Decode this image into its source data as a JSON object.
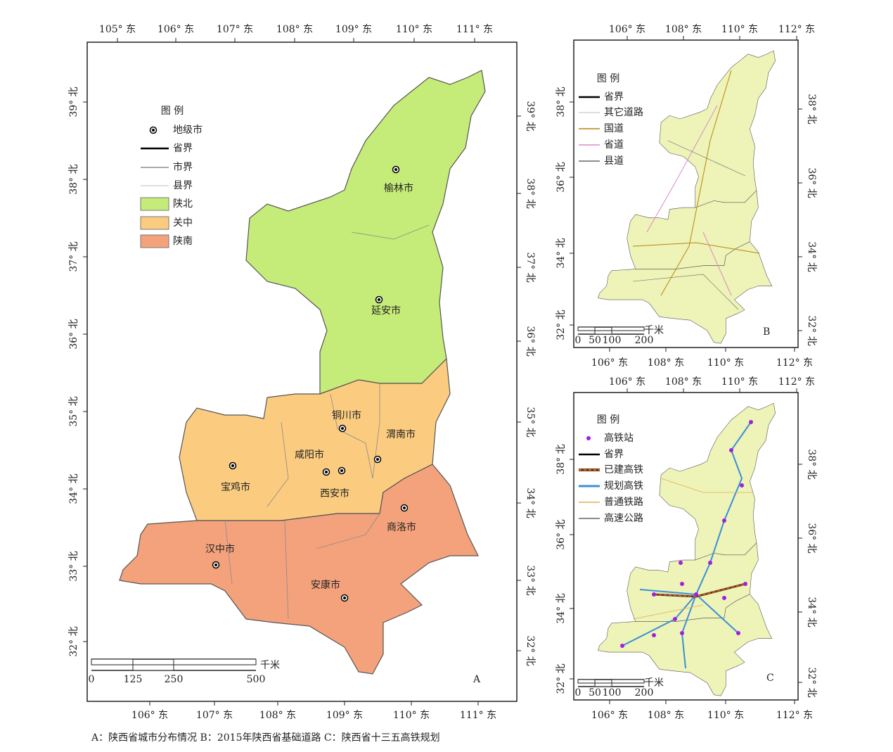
{
  "panels": [
    {
      "label": "A",
      "ticks": {
        "top": [
          "105° 东",
          "106° 东",
          "107° 东",
          "108° 东",
          "109° 东",
          "110° 东",
          "111° 东"
        ],
        "bottom": [
          "106° 东",
          "107° 东",
          "108° 东",
          "109° 东",
          "110° 东",
          "111° 东"
        ],
        "left": [
          "39° 北",
          "38° 北",
          "37° 北",
          "36° 北",
          "35° 北",
          "34° 北",
          "33° 北",
          "32° 北"
        ],
        "right": [
          "39° 北",
          "38° 北",
          "37° 北",
          "36° 北",
          "35° 北",
          "34° 北",
          "33° 北",
          "32° 北"
        ]
      },
      "legend": {
        "title": "图 例",
        "items": [
          "地级市",
          "省界",
          "市界",
          "县界",
          "陕北",
          "关中",
          "陕南"
        ]
      },
      "scale": {
        "labels": [
          "0",
          "125",
          "250",
          "500"
        ],
        "unit": "千米"
      },
      "cities": [
        "榆林市",
        "延安市",
        "铜川市",
        "渭南市",
        "咸阳市",
        "西安市",
        "宝鸡市",
        "商洛市",
        "汉中市",
        "安康市"
      ]
    },
    {
      "label": "B",
      "ticks": {
        "top": [
          "106° 东",
          "108° 东",
          "110° 东",
          "112° 东"
        ],
        "bottom": [
          "106° 东",
          "108° 东",
          "110° 东",
          "112° 东"
        ],
        "left": [
          "38° 北",
          "36° 北",
          "34° 北",
          "32° 北"
        ],
        "right": [
          "38° 北",
          "36° 北",
          "34° 北",
          "32° 北"
        ]
      },
      "legend": {
        "title": "图 例",
        "items": [
          "省界",
          "其它道路",
          "国道",
          "省道",
          "县道"
        ]
      },
      "scale": {
        "labels": [
          "0",
          "50",
          "100",
          "200"
        ],
        "unit": "千米"
      }
    },
    {
      "label": "C",
      "ticks": {
        "top": [
          "106° 东",
          "108° 东",
          "110° 东",
          "112° 东"
        ],
        "bottom": [
          "106° 东",
          "108° 东",
          "110° 东",
          "112° 东"
        ],
        "left": [
          "38° 北",
          "36° 北",
          "34° 北",
          "32° 北"
        ],
        "right": [
          "38° 北",
          "36° 北",
          "34° 北",
          "32° 北"
        ]
      },
      "legend": {
        "title": "图 例",
        "items": [
          "高铁站",
          "省界",
          "已建高铁",
          "规划高铁",
          "普通铁路",
          "高速公路"
        ]
      },
      "scale": {
        "labels": [
          "0",
          "50",
          "100",
          "200"
        ],
        "unit": "千米"
      }
    }
  ],
  "caption": "A：陕西省城市分布情况 B：2015年陕西省基础道路 C：陕西省十三五高铁规划"
}
